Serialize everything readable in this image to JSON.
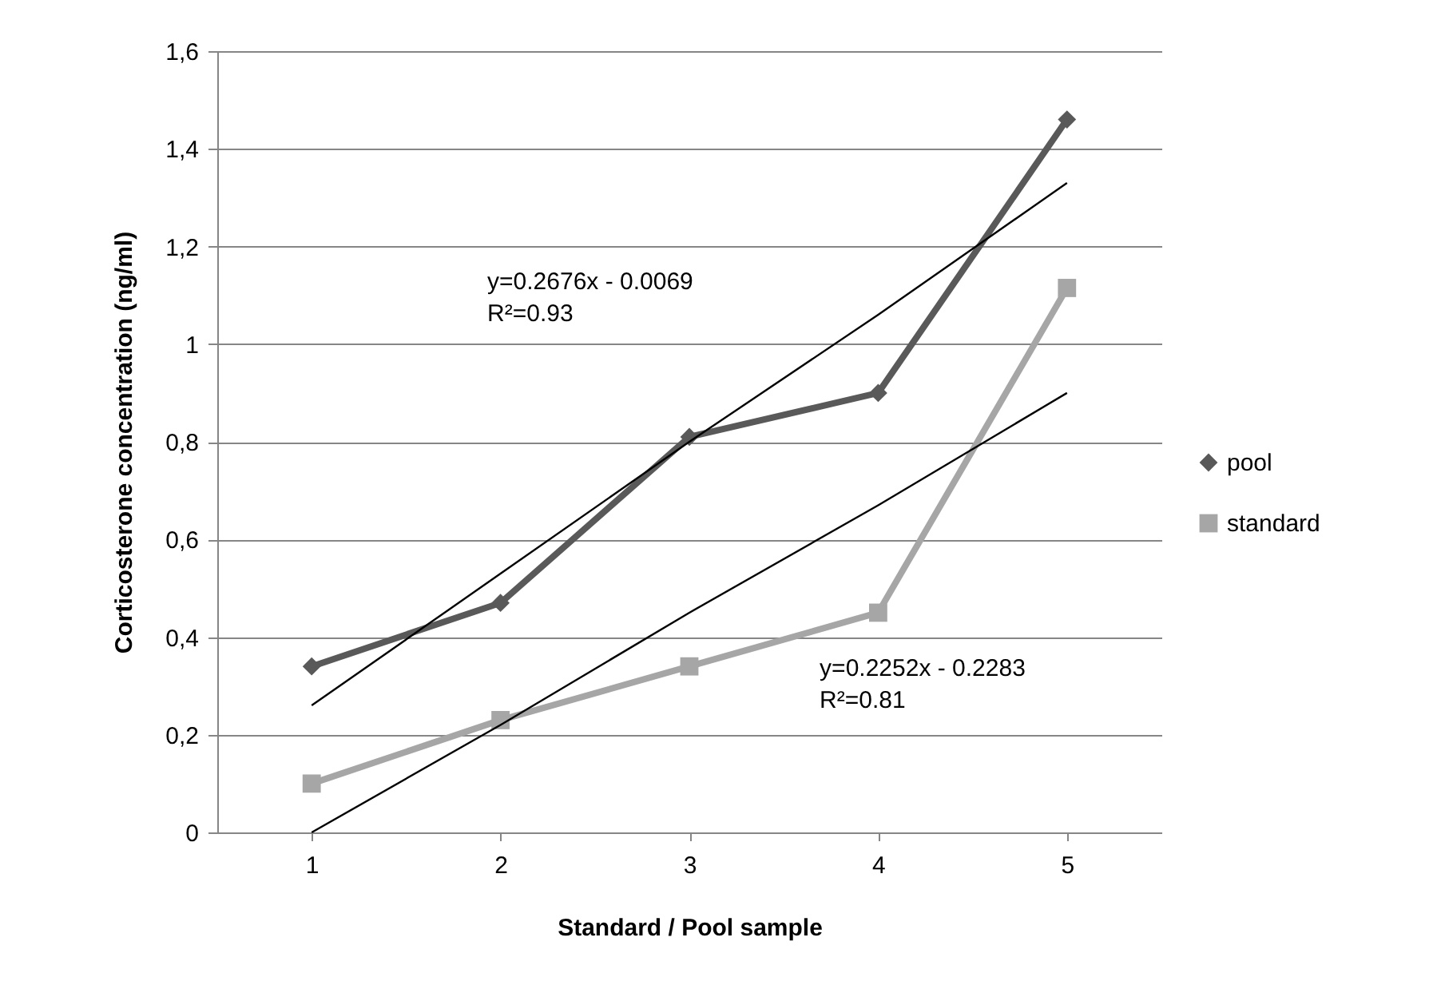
{
  "chart_data": {
    "type": "line",
    "xlabel": "Standard / Pool sample",
    "ylabel": "Corticosterone concentration (ng/ml)",
    "x": [
      1,
      2,
      3,
      4,
      5
    ],
    "xlim": [
      0.5,
      5.5
    ],
    "xticks": [
      1,
      2,
      3,
      4,
      5
    ],
    "ylim": [
      0,
      1.6
    ],
    "yticks": [
      0,
      {
        "value": 0.2,
        "label": "0,2"
      },
      {
        "value": 0.4,
        "label": "0,4"
      },
      {
        "value": 0.6,
        "label": "0,6"
      },
      {
        "value": 0.8,
        "label": "0,8"
      },
      1,
      {
        "value": 1.2,
        "label": "1,2"
      },
      {
        "value": 1.4,
        "label": "1,4"
      },
      {
        "value": 1.6,
        "label": "1,6"
      }
    ],
    "grid": "y",
    "legend": "right",
    "series": [
      {
        "name": "pool",
        "color": "#595959",
        "marker": "diamond",
        "values": [
          0.34,
          0.47,
          0.81,
          0.9,
          1.46
        ]
      },
      {
        "name": "standard",
        "color": "#a6a6a6",
        "marker": "square",
        "values": [
          0.1,
          0.23,
          0.34,
          0.45,
          1.115
        ]
      },
      {
        "type": "line",
        "color": "#000000",
        "marker": "none",
        "values": [
          0.26,
          0.53,
          0.8,
          1.06,
          1.33
        ]
      },
      {
        "type": "line",
        "color": "#000000",
        "marker": "none",
        "values": [
          0,
          0.22,
          0.45,
          0.67,
          0.9
        ]
      }
    ],
    "annotations": [
      "y=0.2676x - 0.0069\nR²=0.93",
      "y=0.2252x - 0.2283\nR²=0.81"
    ]
  }
}
